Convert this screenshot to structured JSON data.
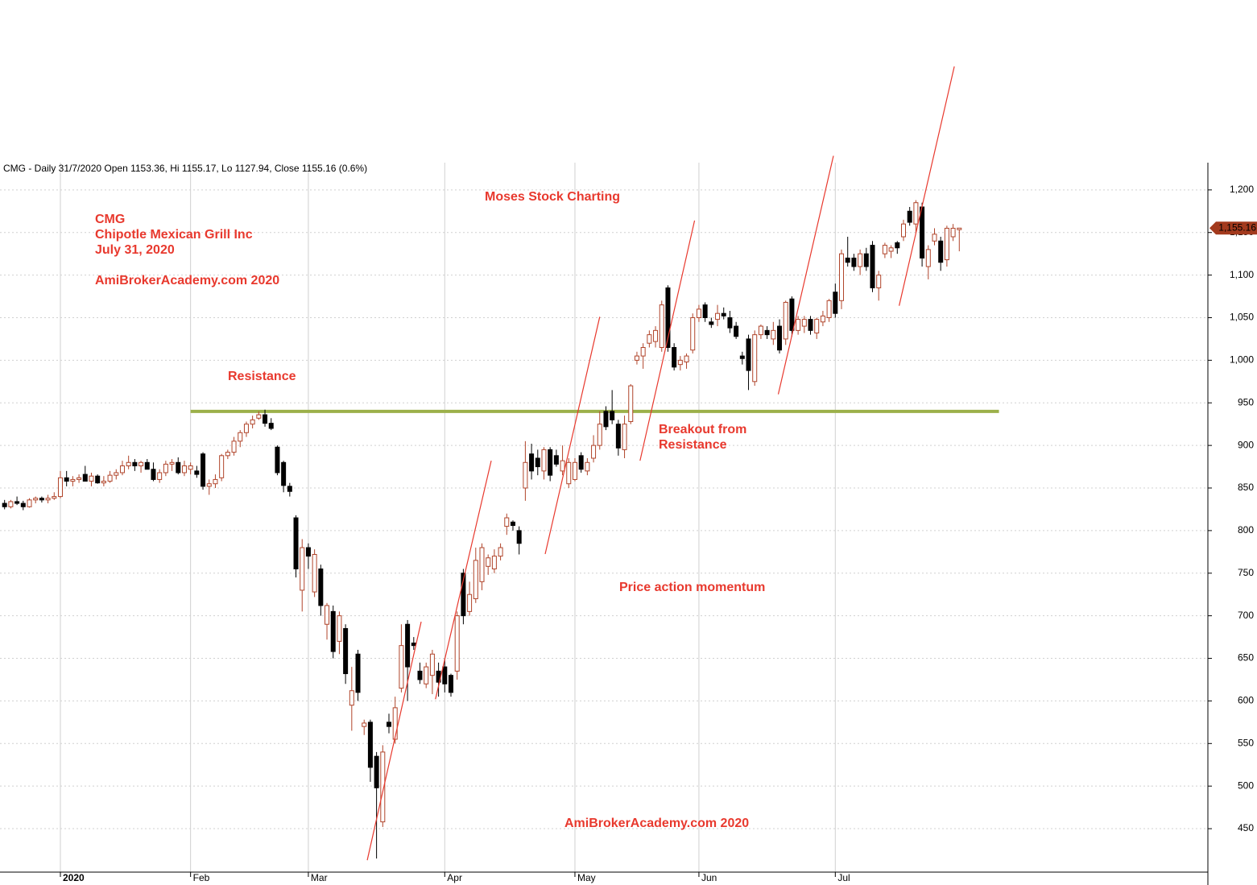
{
  "chart_data": {
    "type": "candlestick",
    "header": "CMG - Daily 31/7/2020 Open 1153.36, Hi 1155.17, Lo 1127.94, Close 1155.16 (0.6%)",
    "title_lines": [
      "CMG",
      "Chipotle Mexican Grill Inc",
      "July 31, 2020"
    ],
    "site": "AmiBrokerAcademy.com  2020",
    "annotations": [
      "Moses Stock Charting",
      "Resistance",
      "Breakout from",
      "Resistance",
      "Price action momentum"
    ],
    "xlim": [
      -0.74,
      194.1
    ],
    "xticks": [
      {
        "value": 9,
        "label": "2020"
      },
      {
        "value": 30,
        "label": "Feb"
      },
      {
        "value": 49,
        "label": "Mar"
      },
      {
        "value": 71,
        "label": "Apr"
      },
      {
        "value": 92,
        "label": "May"
      },
      {
        "value": 112,
        "label": "Jun"
      },
      {
        "value": 134,
        "label": "Jul"
      }
    ],
    "ylim": [
      399,
      1232
    ],
    "yticks": [
      450,
      500,
      550,
      600,
      650,
      700,
      750,
      800,
      850,
      900,
      950,
      {
        "value": 1000,
        "label": "1,000"
      },
      {
        "value": 1050,
        "label": "1,050"
      },
      {
        "value": 1100,
        "label": "1,100"
      },
      {
        "value": 1150,
        "label": "1,150"
      },
      {
        "value": 1200,
        "label": "1,200"
      }
    ],
    "grid": true,
    "series": [
      {
        "name": "CMG",
        "up_color": "#b0442a",
        "down_color": "#000000",
        "open": [
          832,
          828,
          834,
          832,
          828,
          836,
          838,
          836,
          838,
          840,
          862,
          858,
          860,
          866,
          858,
          864,
          856,
          858,
          865,
          868,
          876,
          880,
          876,
          880,
          872,
          860,
          868,
          878,
          880,
          868,
          872,
          870,
          890,
          852,
          855,
          862,
          888,
          892,
          905,
          915,
          925,
          932,
          936,
          926,
          898,
          880,
          852,
          815,
          730,
          780,
          728,
          755,
          690,
          705,
          670,
          685,
          595,
          655,
          570,
          575,
          535,
          458,
          575,
          555,
          615,
          690,
          668,
          635,
          620,
          630,
          635,
          640,
          630,
          635,
          750,
          705,
          720,
          740,
          758,
          755,
          770,
          805,
          810,
          800,
          850,
          890,
          885,
          870,
          895,
          888,
          870,
          855,
          860,
          888,
          870,
          885,
          900,
          940,
          940,
          925,
          895,
          928,
          1000,
          1005,
          1020,
          1022,
          1015,
          1085,
          1015,
          995,
          998,
          1012,
          1050,
          1065,
          1045,
          1048,
          1055,
          1050,
          1040,
          1005,
          1025,
          975,
          1030,
          1035,
          1025,
          1040,
          1025,
          1072,
          1035,
          1040,
          1048,
          1032,
          1045,
          1050,
          1080,
          1070,
          1120,
          1120,
          1110,
          1125,
          1135,
          1085,
          1125,
          1128,
          1138,
          1145,
          1175,
          1160,
          1180,
          1110,
          1140,
          1140,
          1118,
          1145,
          1153.36
        ],
        "high": [
          836,
          836,
          840,
          835,
          838,
          840,
          840,
          842,
          845,
          870,
          870,
          864,
          866,
          876,
          868,
          866,
          864,
          870,
          872,
          882,
          888,
          884,
          882,
          884,
          880,
          872,
          882,
          884,
          886,
          882,
          880,
          876,
          892,
          860,
          866,
          890,
          895,
          910,
          918,
          928,
          935,
          940,
          942,
          932,
          900,
          882,
          856,
          818,
          790,
          785,
          778,
          760,
          715,
          712,
          705,
          690,
          640,
          660,
          578,
          578,
          540,
          548,
          585,
          605,
          690,
          695,
          675,
          645,
          645,
          660,
          645,
          650,
          632,
          705,
          755,
          740,
          780,
          785,
          772,
          778,
          785,
          820,
          812,
          805,
          905,
          902,
          895,
          898,
          898,
          895,
          900,
          885,
          885,
          892,
          885,
          912,
          940,
          946,
          965,
          930,
          935,
          972,
          1010,
          1020,
          1035,
          1040,
          1070,
          1088,
          1020,
          1005,
          1008,
          1055,
          1065,
          1068,
          1050,
          1065,
          1062,
          1058,
          1045,
          1010,
          1030,
          1035,
          1042,
          1040,
          1045,
          1048,
          1070,
          1075,
          1052,
          1052,
          1052,
          1050,
          1058,
          1072,
          1090,
          1130,
          1145,
          1125,
          1130,
          1132,
          1140,
          1105,
          1138,
          1135,
          1140,
          1165,
          1180,
          1188,
          1185,
          1135,
          1155,
          1145,
          1158,
          1160,
          1155.17
        ],
        "low": [
          825,
          826,
          830,
          824,
          827,
          832,
          833,
          832,
          836,
          838,
          852,
          852,
          856,
          858,
          852,
          855,
          852,
          856,
          860,
          865,
          872,
          870,
          868,
          874,
          858,
          856,
          864,
          870,
          866,
          864,
          866,
          862,
          848,
          842,
          850,
          858,
          884,
          888,
          898,
          910,
          920,
          930,
          922,
          918,
          865,
          845,
          840,
          745,
          705,
          755,
          722,
          700,
          672,
          650,
          655,
          620,
          565,
          600,
          560,
          505,
          415,
          452,
          562,
          550,
          610,
          600,
          660,
          620,
          615,
          608,
          605,
          610,
          605,
          625,
          690,
          700,
          715,
          730,
          748,
          750,
          765,
          795,
          800,
          772,
          835,
          860,
          865,
          860,
          858,
          875,
          865,
          850,
          858,
          868,
          865,
          880,
          895,
          918,
          925,
          888,
          885,
          925,
          995,
          990,
          1015,
          1015,
          1010,
          1010,
          988,
          988,
          990,
          1008,
          1045,
          1045,
          1038,
          1040,
          1048,
          1032,
          1025,
          995,
          965,
          970,
          1025,
          1025,
          1018,
          1008,
          1018,
          1028,
          1030,
          1032,
          1030,
          1025,
          1040,
          1045,
          1050,
          1060,
          1110,
          1105,
          1100,
          1105,
          1080,
          1070,
          1120,
          1120,
          1125,
          1140,
          1158,
          1150,
          1110,
          1095,
          1135,
          1105,
          1110,
          1140,
          1127.94
        ],
        "close": [
          828,
          834,
          832,
          828,
          836,
          838,
          836,
          838,
          840,
          862,
          858,
          860,
          862,
          858,
          864,
          856,
          858,
          865,
          868,
          876,
          880,
          876,
          880,
          872,
          860,
          868,
          878,
          880,
          868,
          876,
          876,
          866,
          852,
          855,
          860,
          888,
          892,
          905,
          915,
          925,
          930,
          936,
          926,
          920,
          868,
          853,
          846,
          755,
          780,
          770,
          772,
          712,
          712,
          658,
          700,
          632,
          612,
          610,
          574,
          522,
          498,
          540,
          570,
          592,
          665,
          640,
          665,
          625,
          640,
          655,
          622,
          620,
          610,
          700,
          700,
          725,
          765,
          780,
          768,
          770,
          780,
          815,
          806,
          785,
          880,
          870,
          875,
          895,
          865,
          878,
          882,
          880,
          880,
          872,
          880,
          900,
          925,
          922,
          930,
          897,
          925,
          970,
          1005,
          1015,
          1030,
          1035,
          1065,
          1015,
          992,
          1000,
          1005,
          1050,
          1060,
          1050,
          1042,
          1055,
          1052,
          1038,
          1028,
          1002,
          988,
          1030,
          1040,
          1030,
          1035,
          1012,
          1068,
          1035,
          1048,
          1048,
          1035,
          1048,
          1052,
          1070,
          1055,
          1125,
          1115,
          1110,
          1125,
          1110,
          1085,
          1100,
          1135,
          1132,
          1132,
          1160,
          1162,
          1185,
          1120,
          1130,
          1148,
          1115,
          1155,
          1155,
          1155.16
        ],
        "last_label": "1,155.16",
        "label_color": "#a33a1d"
      }
    ],
    "resistance": {
      "level": 940,
      "start": 30,
      "end": 160.4,
      "color": "#9cb04a"
    },
    "trendline_color": "#e8392e",
    "trendlines": [
      {
        "start": [
          58.5,
          413
        ],
        "end": [
          67.2,
          693
        ]
      },
      {
        "start": [
          69.5,
          602
        ],
        "end": [
          78.5,
          882
        ]
      },
      {
        "start": [
          87.2,
          772.5
        ],
        "end": [
          96.0,
          1051
        ]
      },
      {
        "start": [
          102.5,
          882
        ],
        "end": [
          111.3,
          1164
        ]
      },
      {
        "start": [
          124.8,
          960
        ],
        "end": [
          133.7,
          1240
        ]
      },
      {
        "start": [
          144.3,
          1064
        ],
        "end": [
          153.2,
          1345
        ]
      }
    ]
  }
}
